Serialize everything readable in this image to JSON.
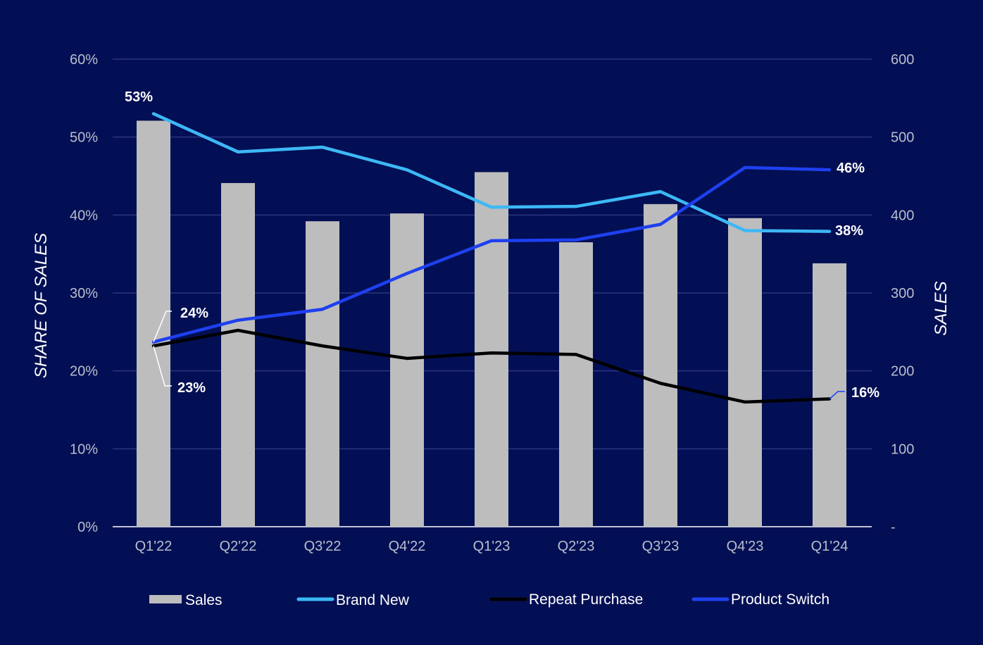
{
  "chart_data": {
    "type": "bar+line",
    "categories": [
      "Q1'22",
      "Q2'22",
      "Q3'22",
      "Q4'22",
      "Q1'23",
      "Q2'23",
      "Q3'23",
      "Q4'23",
      "Q1'24"
    ],
    "bars": {
      "name": "Sales",
      "axis": "right",
      "values": [
        521,
        441,
        392,
        402,
        455,
        365,
        414,
        396,
        338
      ]
    },
    "series": [
      {
        "name": "Brand New",
        "axis": "left",
        "values": [
          53,
          48.1,
          48.7,
          45.8,
          41.0,
          41.1,
          43.0,
          38.0,
          37.9
        ]
      },
      {
        "name": "Repeat Purchase",
        "axis": "left",
        "values": [
          23.2,
          25.2,
          23.2,
          21.6,
          22.3,
          22.1,
          18.4,
          16.0,
          16.4
        ]
      },
      {
        "name": "Product Switch",
        "axis": "left",
        "values": [
          23.7,
          26.5,
          27.9,
          32.5,
          36.7,
          36.8,
          38.8,
          46.1,
          45.8
        ]
      }
    ],
    "left_axis": {
      "label": "SHARE OF SALES",
      "ylim": [
        0,
        60
      ],
      "ticks": [
        "0%",
        "10%",
        "20%",
        "30%",
        "40%",
        "50%",
        "60%"
      ]
    },
    "right_axis": {
      "label": "SALES",
      "ylim": [
        0,
        600
      ],
      "ticks": [
        "-",
        "100",
        "200",
        "300",
        "400",
        "500",
        "600"
      ]
    },
    "callouts": {
      "brand_new_first": "53%",
      "product_switch_first": "24%",
      "repeat_first": "23%",
      "product_switch_last": "46%",
      "brand_new_last": "38%",
      "repeat_last": "16%"
    },
    "legend": [
      "Sales",
      "Brand New",
      "Repeat Purchase",
      "Product Switch"
    ],
    "grid": true,
    "legend_position": "bottom"
  },
  "colors": {
    "background": "#030F54",
    "bars": "#BDBDBD",
    "brand_new": "#3DB8F5",
    "repeat_purchase": "#000000",
    "product_switch": "#1E40F0",
    "grid": "#2A3580",
    "baseline": "#FFFFFF"
  }
}
